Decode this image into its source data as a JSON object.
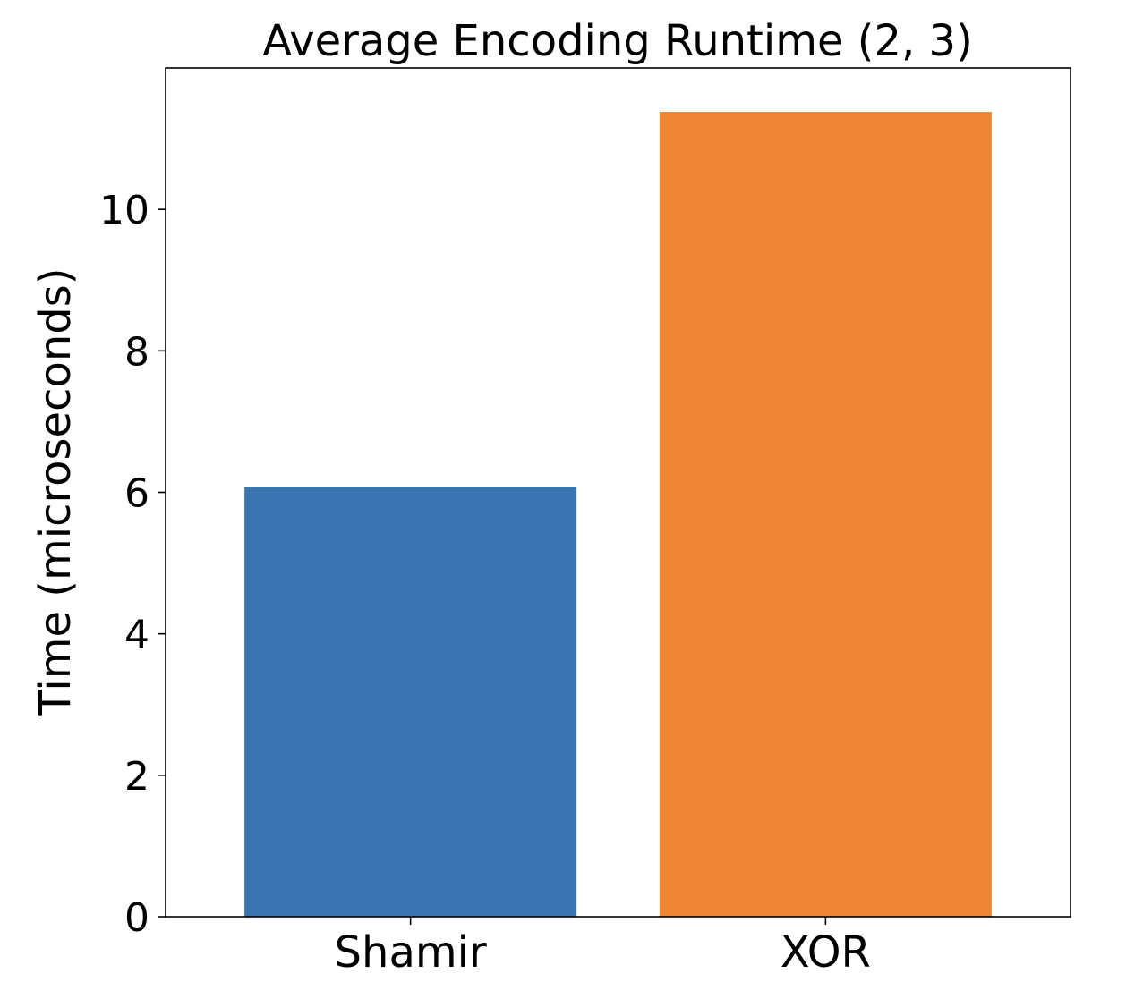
{
  "chart_data": {
    "type": "bar",
    "title": "Average Encoding Runtime (2, 3)",
    "xlabel": "",
    "ylabel": "Time (microseconds)",
    "categories": [
      "Shamir",
      "XOR"
    ],
    "values": [
      6.08,
      11.38
    ],
    "colors": [
      "#3b75af",
      "#ef8636"
    ],
    "ylim": [
      0,
      12.0
    ],
    "yticks": [
      0,
      2,
      4,
      6,
      8,
      10
    ],
    "ytick_labels": [
      "0",
      "2",
      "4",
      "6",
      "8",
      "10"
    ],
    "grid": false,
    "legend": "none"
  }
}
